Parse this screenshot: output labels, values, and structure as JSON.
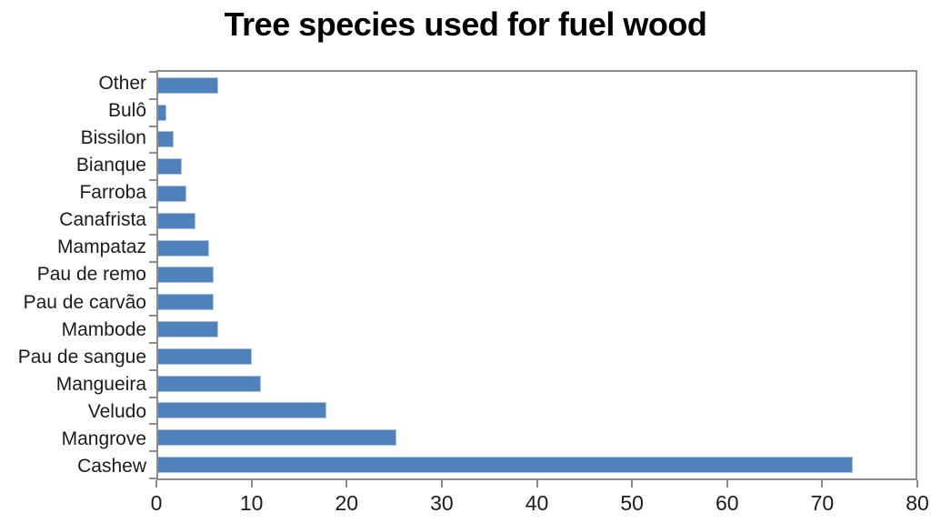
{
  "chart_data": {
    "type": "bar",
    "orientation": "horizontal",
    "title": "Tree species used for fuel wood",
    "categories": [
      "Other",
      "Bulô",
      "Bissilon",
      "Bianque",
      "Farroba",
      "Canafrista",
      "Mampataz",
      "Pau de remo",
      "Pau de carvão",
      "Mambode",
      "Pau de sangue",
      "Mangueira",
      "Veludo",
      "Mangrove",
      "Cashew"
    ],
    "values": [
      6.3,
      0.9,
      1.6,
      2.5,
      3.0,
      3.9,
      5.4,
      5.9,
      5.9,
      6.3,
      9.9,
      10.9,
      17.8,
      25.2,
      73.4
    ],
    "xlabel": "",
    "ylabel": "",
    "xlim": [
      0,
      80
    ],
    "x_ticks": [
      0,
      10,
      20,
      30,
      40,
      50,
      60,
      70,
      80
    ],
    "grid": false,
    "legend": false,
    "bar_color": "#4f81bd",
    "axis_color": "#8c8c8c",
    "background_color": "#ffffff"
  }
}
